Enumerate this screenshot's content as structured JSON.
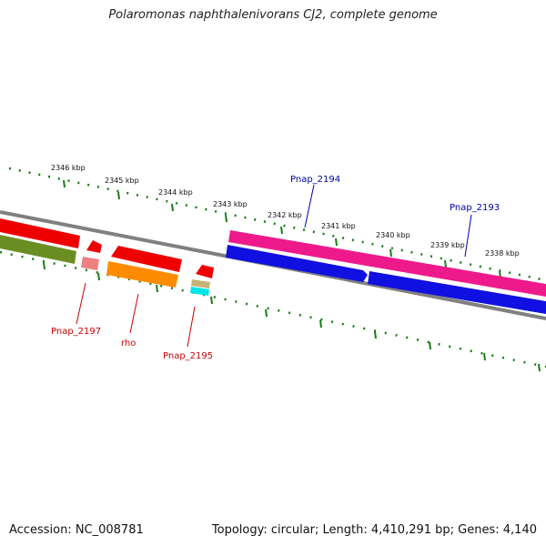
{
  "title": "Polaromonas naphthalenivorans CJ2, complete genome",
  "accession_label": "Accession: NC_008781",
  "summary_label": "Topology: circular; Length: 4,410,291 bp; Genes: 4,140",
  "ruler_labels": [
    "2346 kbp",
    "2345 kbp",
    "2344 kbp",
    "2343 kbp",
    "2342 kbp",
    "2341 kbp",
    "2340 kbp",
    "2339 kbp",
    "2338 kbp"
  ],
  "genes": {
    "pnap_2194": "Pnap_2194",
    "pnap_2193": "Pnap_2193",
    "pnap_2197": "Pnap_2197",
    "rho": "rho",
    "pnap_2195": "Pnap_2195"
  },
  "colors": {
    "forward_cds": "#ee1a8c",
    "reverse_cds": "#1010e0",
    "red_gene": "#ee0000",
    "orange_gene": "#ff8c00",
    "olive_gene": "#6b8e23",
    "ruler": "#1a7a1a",
    "backbone": "#808080",
    "label_blue": "#0000aa",
    "label_red": "#cc0000"
  }
}
